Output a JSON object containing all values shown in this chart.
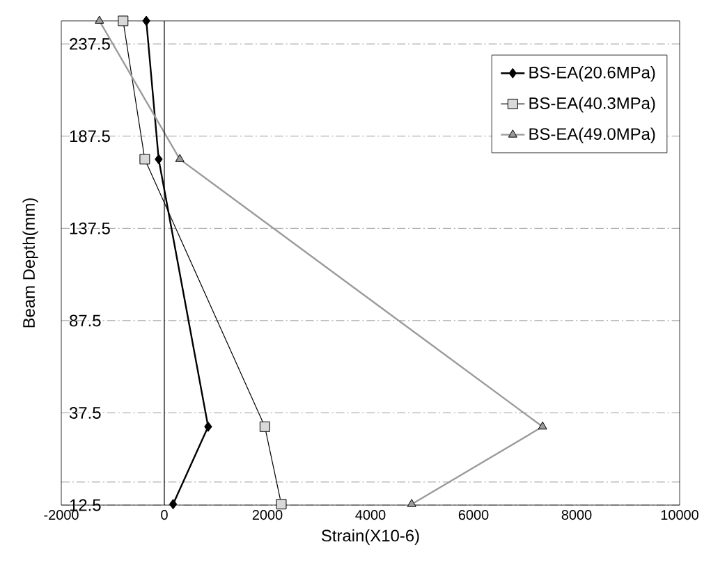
{
  "chart_data": {
    "type": "line",
    "xlabel": "Strain(X10-6)",
    "ylabel": "Beam Depth(mm)",
    "xlim": [
      -2000,
      10000
    ],
    "xticks": [
      -2000,
      0,
      2000,
      4000,
      6000,
      8000,
      10000
    ],
    "ylim": [
      -12.5,
      250
    ],
    "yticks": [
      {
        "value": -12.5,
        "label": "12.5"
      },
      {
        "value": 0,
        "label": null
      },
      37.5,
      87.5,
      137.5,
      187.5,
      237.5
    ],
    "grid": "y",
    "legend": "top right",
    "ref_lines": [
      {
        "axis": "x",
        "value": 0,
        "color": "#000000",
        "line_style": "solid"
      }
    ],
    "series": [
      {
        "name": "BS-EA(20.6MPa)",
        "color": "#000000",
        "marker": "diamond",
        "x": [
          -350,
          -110,
          850,
          170
        ],
        "values": [
          250,
          175,
          30,
          -12
        ]
      },
      {
        "name": "BS-EA(40.3MPa)",
        "color": "#d9d9d9",
        "marker": "square",
        "x": [
          -800,
          -380,
          1950,
          2270
        ],
        "values": [
          250,
          175,
          30,
          -12
        ]
      },
      {
        "name": "BS-EA(49.0MPa)",
        "color": "#9a9a9a",
        "marker": "triangle",
        "x": [
          -1260,
          300,
          7340,
          4800
        ],
        "values": [
          250,
          175,
          30,
          -12
        ]
      }
    ]
  }
}
